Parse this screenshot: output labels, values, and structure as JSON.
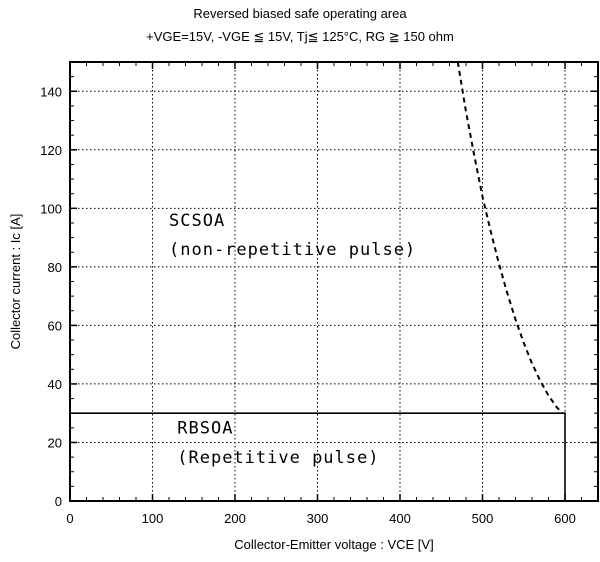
{
  "chart_data": {
    "type": "line",
    "title": "Reversed biased safe operating area",
    "subtitle": "+VGE=15V,  -VGE ≦ 15V,  Tj≦ 125°C,  RG ≧ 150 ohm",
    "xlabel": "Collector-Emitter voltage  :  VCE [V]",
    "ylabel": "Collector current  :  Ic [A]",
    "xlim": [
      0,
      640
    ],
    "ylim": [
      0,
      150
    ],
    "xticks": [
      0,
      100,
      200,
      300,
      400,
      500,
      600
    ],
    "yticks": [
      0,
      20,
      40,
      60,
      80,
      100,
      120,
      140
    ],
    "grid": true,
    "series": [
      {
        "style": "solid",
        "color": "#000000",
        "x": [
          0,
          600,
          600
        ],
        "y": [
          30,
          30,
          0
        ]
      },
      {
        "style": "dashed",
        "color": "#000000",
        "x": [
          470,
          480,
          490,
          500,
          510,
          520,
          530,
          540,
          550,
          560,
          570,
          580,
          590,
          597
        ],
        "y": [
          150,
          133,
          118,
          104,
          92,
          81,
          71,
          62,
          54,
          47,
          41,
          36,
          32,
          30
        ]
      }
    ],
    "annotations": [
      {
        "id": "scsoa",
        "x": 120,
        "line1": "SCSOA",
        "line2": "(non-repetitive pulse)",
        "y1": 94,
        "y2": 84
      },
      {
        "id": "rbsoa",
        "x": 130,
        "line1": "RBSOA",
        "line2": "(Repetitive pulse)",
        "y1": 23,
        "y2": 13
      }
    ]
  }
}
